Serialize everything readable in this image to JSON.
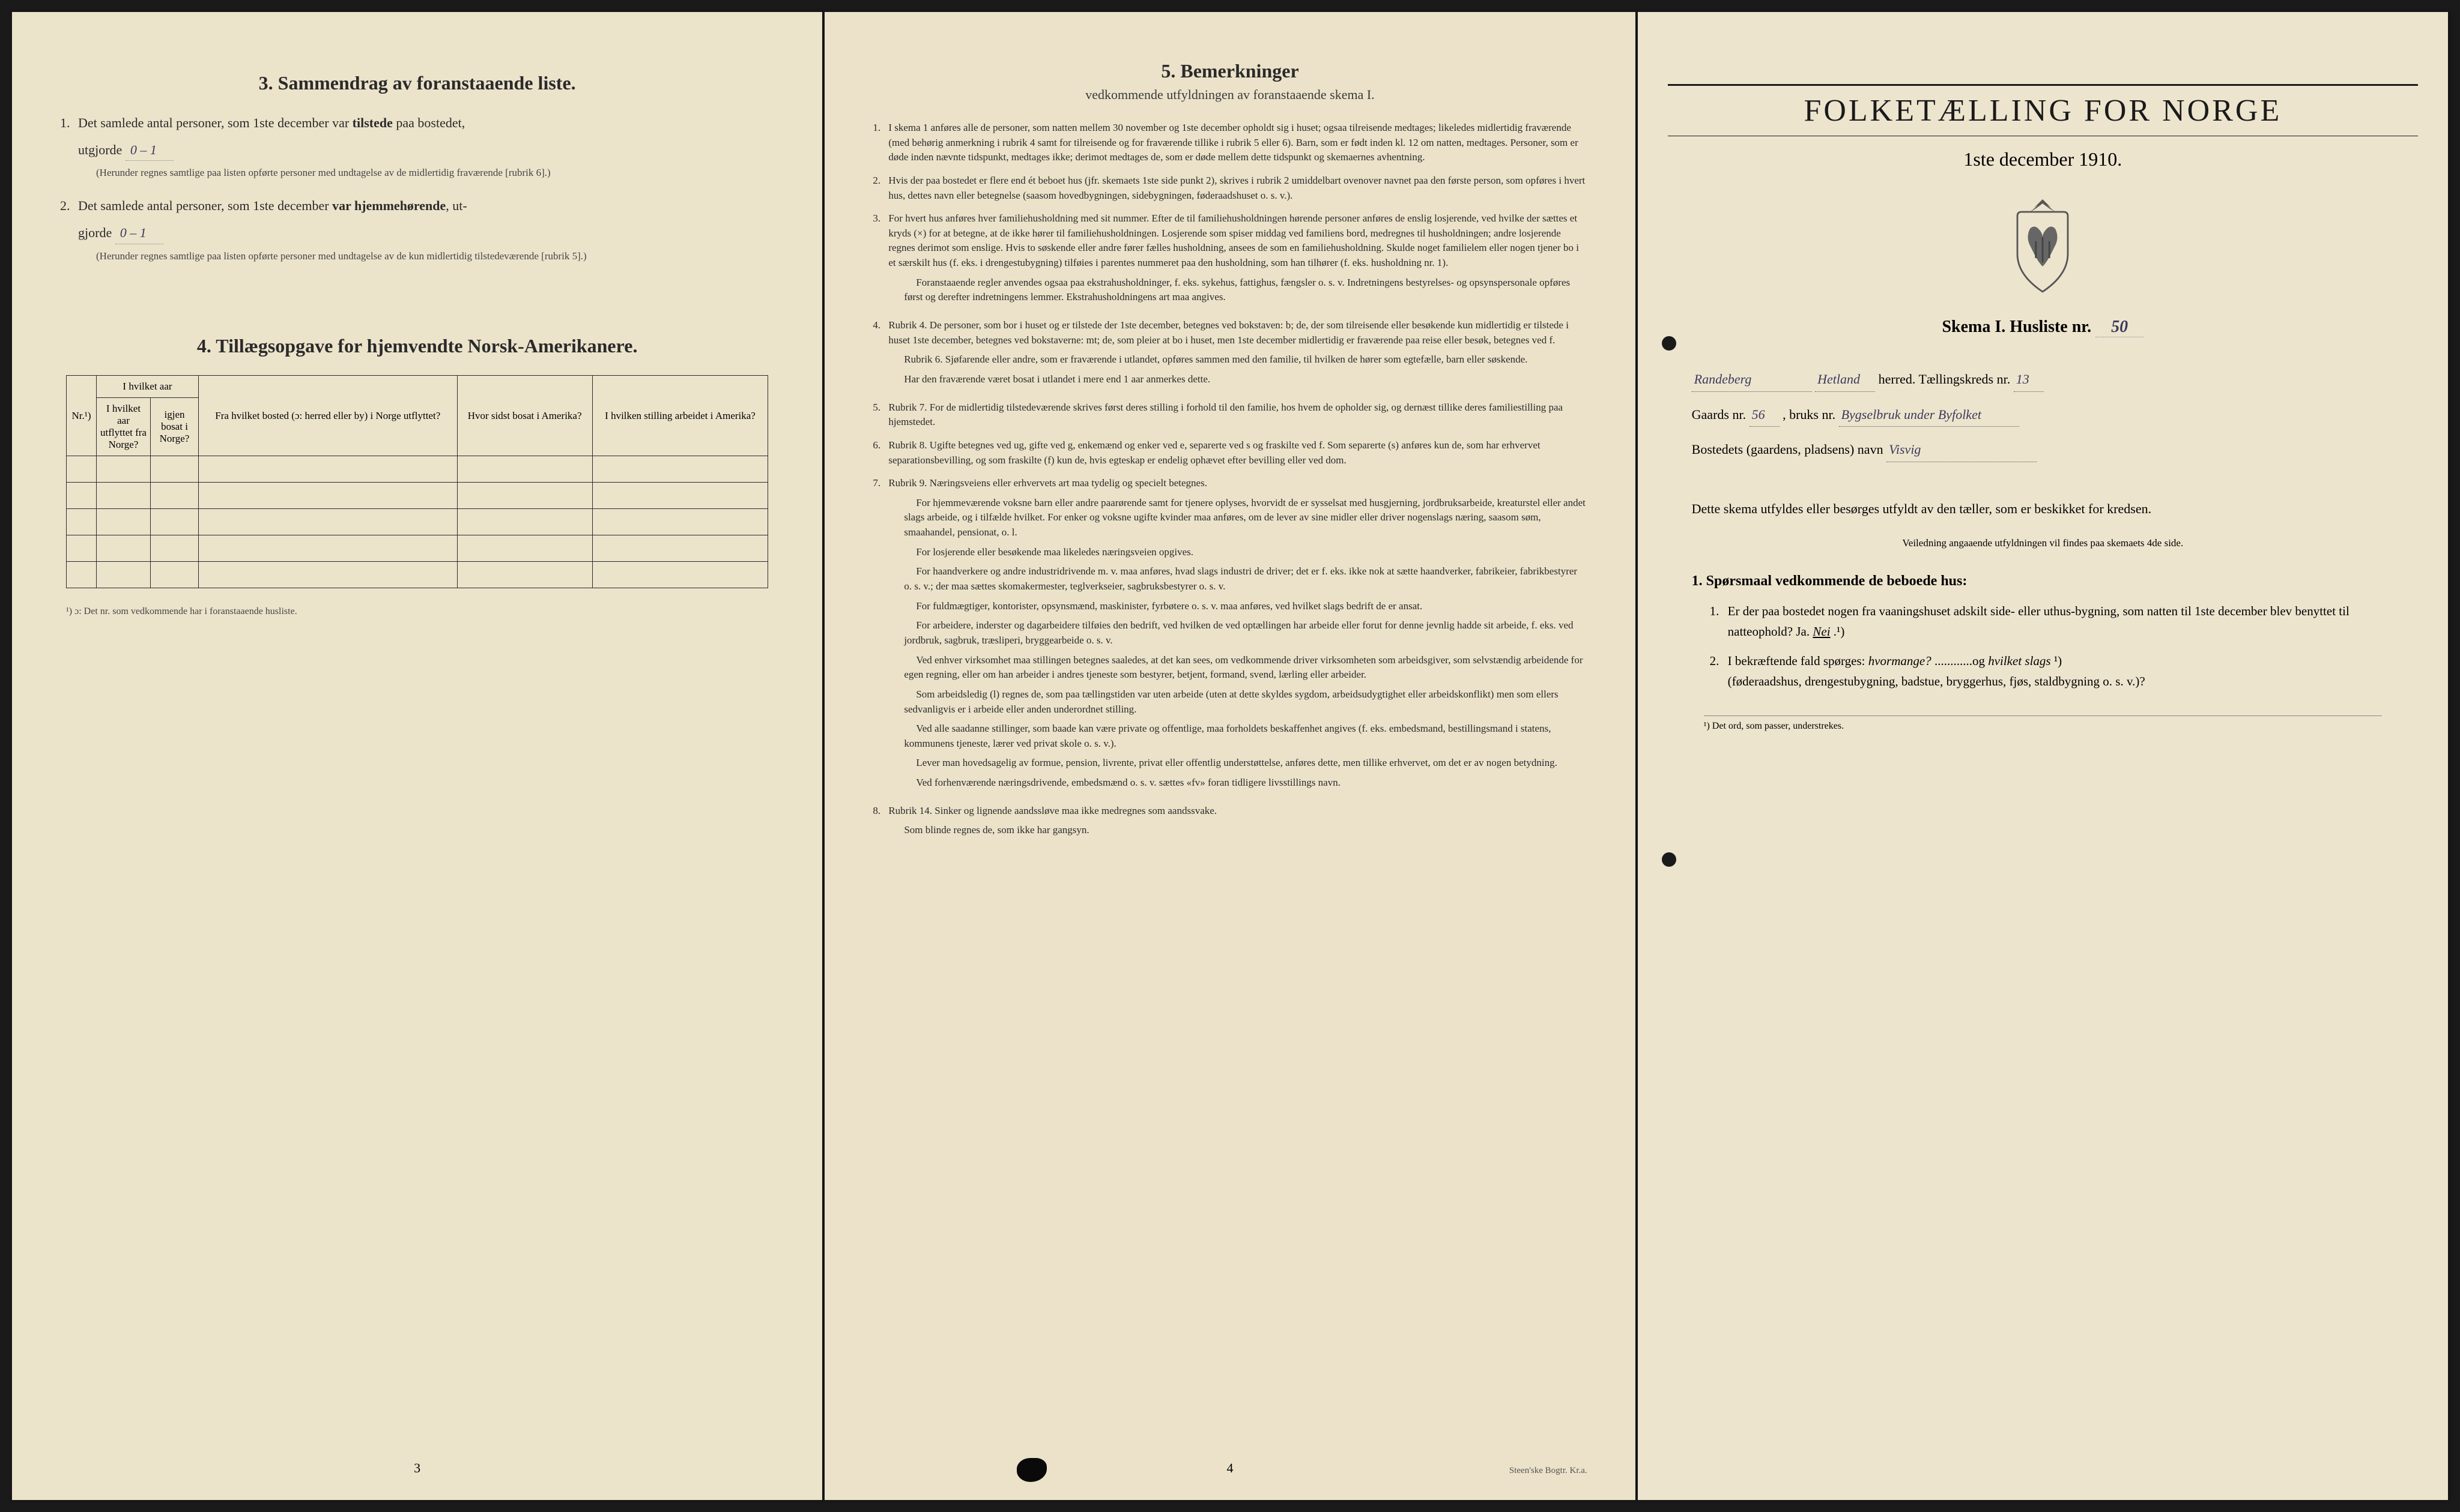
{
  "page1": {
    "section3": {
      "title": "3.  Sammendrag av foranstaaende liste.",
      "item1_prefix": "1.",
      "item1_text_a": "Det samlede antal personer, som 1ste december var ",
      "item1_bold": "tilstede",
      "item1_text_b": " paa bostedet,",
      "item1_line2": "utgjorde",
      "item1_value": "0 – 1",
      "item1_note": "(Herunder regnes samtlige paa listen opførte personer med undtagelse av de midlertidig fraværende [rubrik 6].)",
      "item2_prefix": "2.",
      "item2_text_a": "Det samlede antal personer, som 1ste december ",
      "item2_bold": "var hjemmehørende",
      "item2_text_b": ", ut-",
      "item2_line2": "gjorde",
      "item2_value": "0 – 1",
      "item2_note": "(Herunder regnes samtlige paa listen opførte personer med undtagelse av de kun midlertidig tilstedeværende [rubrik 5].)"
    },
    "section4": {
      "title": "4.  Tillægsopgave for hjemvendte Norsk-Amerikanere.",
      "columns": [
        "Nr.¹)",
        "I hvilket aar utflyttet fra Norge?",
        "igjen bosat i Norge?",
        "Fra hvilket bosted (ɔ: herred eller by) i Norge utflyttet?",
        "Hvor sidst bosat i Amerika?",
        "I hvilken stilling arbeidet i Amerika?"
      ],
      "col_group": "I hvilket aar",
      "rows": 5,
      "footnote": "¹) ɔ: Det nr. som vedkommende har i foranstaaende husliste."
    },
    "page_num": "3"
  },
  "page2": {
    "section5": {
      "title": "5.  Bemerkninger",
      "subtitle": "vedkommende utfyldningen av foranstaaende skema I.",
      "items": [
        {
          "num": "1.",
          "text": "I skema 1 anføres alle de personer, som natten mellem 30 november og 1ste december opholdt sig i huset; ogsaa tilreisende medtages; likeledes midlertidig fraværende (med behørig anmerkning i rubrik 4 samt for tilreisende og for fraværende tillike i rubrik 5 eller 6). Barn, som er født inden kl. 12 om natten, medtages. Personer, som er døde inden nævnte tidspunkt, medtages ikke; derimot medtages de, som er døde mellem dette tidspunkt og skemaernes avhentning."
        },
        {
          "num": "2.",
          "text": "Hvis der paa bostedet er flere end ét beboet hus (jfr. skemaets 1ste side punkt 2), skrives i rubrik 2 umiddelbart ovenover navnet paa den første person, som opføres i hvert hus, dettes navn eller betegnelse (saasom hovedbygningen, sidebygningen, føderaadshuset o. s. v.)."
        },
        {
          "num": "3.",
          "text": "For hvert hus anføres hver familiehusholdning med sit nummer. Efter de til familiehusholdningen hørende personer anføres de enslig losjerende, ved hvilke der sættes et kryds (×) for at betegne, at de ikke hører til familiehusholdningen. Losjerende som spiser middag ved familiens bord, medregnes til husholdningen; andre losjerende regnes derimot som enslige. Hvis to søskende eller andre fører fælles husholdning, ansees de som en familiehusholdning. Skulde noget familielem eller nogen tjener bo i et særskilt hus (f. eks. i drengestubygning) tilføies i parentes nummeret paa den husholdning, som han tilhører (f. eks. husholdning nr. 1).",
          "paras": [
            "Foranstaaende regler anvendes ogsaa paa ekstrahusholdninger, f. eks. sykehus, fattighus, fængsler o. s. v. Indretningens bestyrelses- og opsynspersonale opføres først og derefter indretningens lemmer. Ekstrahusholdningens art maa angives."
          ]
        },
        {
          "num": "4.",
          "text": "Rubrik 4. De personer, som bor i huset og er tilstede der 1ste december, betegnes ved bokstaven: b; de, der som tilreisende eller besøkende kun midlertidig er tilstede i huset 1ste december, betegnes ved bokstaverne: mt; de, som pleier at bo i huset, men 1ste december midlertidig er fraværende paa reise eller besøk, betegnes ved f.",
          "subs": [
            "Rubrik 6. Sjøfarende eller andre, som er fraværende i utlandet, opføres sammen med den familie, til hvilken de hører som egtefælle, barn eller søskende.",
            "Har den fraværende været bosat i utlandet i mere end 1 aar anmerkes dette."
          ]
        },
        {
          "num": "5.",
          "text": "Rubrik 7. For de midlertidig tilstedeværende skrives først deres stilling i forhold til den familie, hos hvem de opholder sig, og dernæst tillike deres familiestilling paa hjemstedet."
        },
        {
          "num": "6.",
          "text": "Rubrik 8. Ugifte betegnes ved ug, gifte ved g, enkemænd og enker ved e, separerte ved s og fraskilte ved f. Som separerte (s) anføres kun de, som har erhvervet separationsbevilling, og som fraskilte (f) kun de, hvis egteskap er endelig ophævet efter bevilling eller ved dom."
        },
        {
          "num": "7.",
          "text": "Rubrik 9. Næringsveiens eller erhvervets art maa tydelig og specielt betegnes.",
          "paras": [
            "For hjemmeværende voksne barn eller andre paarørende samt for tjenere oplyses, hvorvidt de er sysselsat med husgjerning, jordbruksarbeide, kreaturstel eller andet slags arbeide, og i tilfælde hvilket. For enker og voksne ugifte kvinder maa anføres, om de lever av sine midler eller driver nogenslags næring, saasom søm, smaahandel, pensionat, o. l.",
            "For losjerende eller besøkende maa likeledes næringsveien opgives.",
            "For haandverkere og andre industridrivende m. v. maa anføres, hvad slags industri de driver; det er f. eks. ikke nok at sætte haandverker, fabrikeier, fabrikbestyrer o. s. v.; der maa sættes skomakermester, teglverkseier, sagbruksbestyrer o. s. v.",
            "For fuldmægtiger, kontorister, opsynsmænd, maskinister, fyrbøtere o. s. v. maa anføres, ved hvilket slags bedrift de er ansat.",
            "For arbeidere, inderster og dagarbeidere tilføies den bedrift, ved hvilken de ved optællingen har arbeide eller forut for denne jevnlig hadde sit arbeide, f. eks. ved jordbruk, sagbruk, træsliperi, bryggearbeide o. s. v.",
            "Ved enhver virksomhet maa stillingen betegnes saaledes, at det kan sees, om vedkommende driver virksomheten som arbeidsgiver, som selvstændig arbeidende for egen regning, eller om han arbeider i andres tjeneste som bestyrer, betjent, formand, svend, lærling eller arbeider.",
            "Som arbeidsledig (l) regnes de, som paa tællingstiden var uten arbeide (uten at dette skyldes sygdom, arbeidsudygtighet eller arbeidskonflikt) men som ellers sedvanligvis er i arbeide eller anden underordnet stilling.",
            "Ved alle saadanne stillinger, som baade kan være private og offentlige, maa forholdets beskaffenhet angives (f. eks. embedsmand, bestillingsmand i statens, kommunens tjeneste, lærer ved privat skole o. s. v.).",
            "Lever man hovedsagelig av formue, pension, livrente, privat eller offentlig understøttelse, anføres dette, men tillike erhvervet, om det er av nogen betydning.",
            "Ved forhenværende næringsdrivende, embedsmænd o. s. v. sættes «fv» foran tidligere livsstillings navn."
          ]
        },
        {
          "num": "8.",
          "text": "Rubrik 14. Sinker og lignende aandssløve maa ikke medregnes som aandssvake.",
          "subs": [
            "Som blinde regnes de, som ikke har gangsyn."
          ]
        }
      ]
    },
    "page_num": "4",
    "printer": "Steen'ske Bogtr. Kr.a."
  },
  "page3": {
    "main_title": "FOLKETÆLLING FOR NORGE",
    "main_subtitle": "1ste december 1910.",
    "schema_label": "Skema I.  Husliste nr.",
    "schema_value": "50",
    "line1_a": "Randeberg",
    "line1_b": "Hetland",
    "line1_label": " herred.  Tællingskreds nr.",
    "line1_value": "13",
    "line2_label_a": "Gaards nr.",
    "line2_value_a": "56",
    "line2_label_b": ", bruks nr.",
    "line2_value_b": "Bygselbruk under Byfolket",
    "line3_label": "Bostedets (gaardens, pladsens) navn",
    "line3_value": "Visvig",
    "instruction": "Dette skema utfyldes eller besørges utfyldt av den tæller, som er beskikket for kredsen.",
    "instruction_small": "Veiledning angaaende utfyldningen vil findes paa skemaets 4de side.",
    "q_header": "1. Spørsmaal vedkommende de beboede hus:",
    "q1_num": "1.",
    "q1_text": "Er der paa bostedet nogen fra vaaningshuset adskilt side- eller uthus-bygning, som natten til 1ste december blev benyttet til natteophold?  Ja.  ",
    "q1_answer": "Nei",
    "q1_suffix": ".¹)",
    "q2_num": "2.",
    "q2_text_a": "I bekræftende fald spørges: ",
    "q2_italic_a": "hvormange?",
    "q2_text_b": " ............og ",
    "q2_italic_b": "hvilket slags",
    "q2_suffix": "¹)",
    "q2_text_c": "(føderaadshus, drengestubygning, badstue, bryggerhus, fjøs, staldbygning o. s. v.)?",
    "footnote": "¹) Det ord, som passer, understrekes."
  }
}
